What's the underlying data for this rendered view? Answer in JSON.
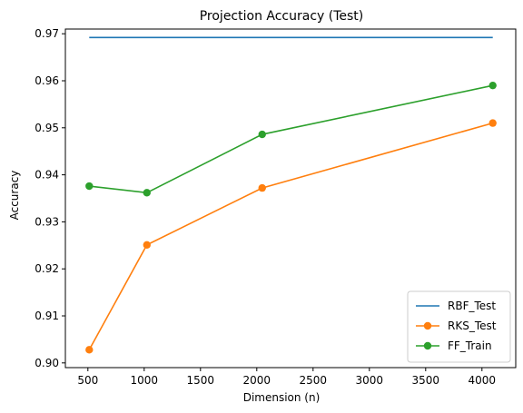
{
  "chart_data": {
    "type": "line",
    "title": "Projection Accuracy (Test)",
    "xlabel": "Dimension (n)",
    "ylabel": "Accuracy",
    "xlim": [
      300,
      4300
    ],
    "ylim": [
      0.899,
      0.971
    ],
    "xticks": [
      500,
      1000,
      1500,
      2000,
      2500,
      3000,
      3500,
      4000
    ],
    "xtick_labels": [
      "500",
      "1000",
      "1500",
      "2000",
      "2500",
      "3000",
      "3500",
      "4000"
    ],
    "yticks": [
      0.9,
      0.91,
      0.92,
      0.93,
      0.94,
      0.95,
      0.96,
      0.97
    ],
    "ytick_labels": [
      "0.90",
      "0.91",
      "0.92",
      "0.93",
      "0.94",
      "0.95",
      "0.96",
      "0.97"
    ],
    "grid": false,
    "legend_position": "lower-right",
    "series": [
      {
        "name": "RBF_Test",
        "color": "#1f77b4",
        "marker": "none",
        "x": [
          512,
          4096
        ],
        "y": [
          0.9692,
          0.9692
        ]
      },
      {
        "name": "RKS_Test",
        "color": "#ff7f0e",
        "marker": "circle",
        "x": [
          512,
          1024,
          2048,
          4096
        ],
        "y": [
          0.9028,
          0.9251,
          0.9372,
          0.951
        ]
      },
      {
        "name": "FF_Train",
        "color": "#2ca02c",
        "marker": "circle",
        "x": [
          512,
          1024,
          2048,
          4096
        ],
        "y": [
          0.9376,
          0.9362,
          0.9486,
          0.959
        ]
      }
    ]
  }
}
